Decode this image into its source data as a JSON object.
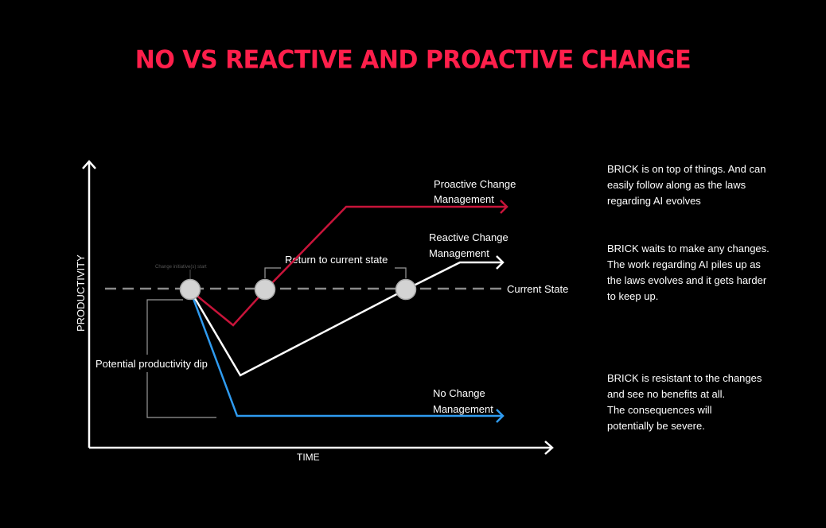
{
  "title": "NO VS REACTIVE AND PROACTIVE CHANGE",
  "axes": {
    "y_label": "PRODUCTIVITY",
    "x_label": "TIME"
  },
  "labels": {
    "proactive_line1": "Proactive Change",
    "proactive_line2": "Management",
    "reactive_line1": "Reactive Change",
    "reactive_line2": "Management",
    "nochange_line1": "No Change",
    "nochange_line2": "Management",
    "current_state": "Current State",
    "return_to_current": "Return to current state",
    "change_initiative_start": "Change initiative(s) start",
    "potential_dip": "Potential productivity dip"
  },
  "descriptions": {
    "proactive": [
      "BRICK is on top of things. And can",
      "easily follow along as the laws",
      "regarding AI evolves"
    ],
    "reactive": [
      "BRICK waits to make any changes.",
      "The work regarding AI piles up as",
      "the laws evolves and it gets harder",
      "to keep up."
    ],
    "nochange": [
      "BRICK is resistant to the changes",
      "and see no benefits at all.",
      "The consequences will",
      "potentially be severe."
    ]
  },
  "colors": {
    "title": "#ff1f4b",
    "proactive": "#c8143a",
    "reactive": "#ffffff",
    "nochange": "#2f9bf0",
    "current_state": "#8a8a8a",
    "node": "#d3d3d3"
  }
}
